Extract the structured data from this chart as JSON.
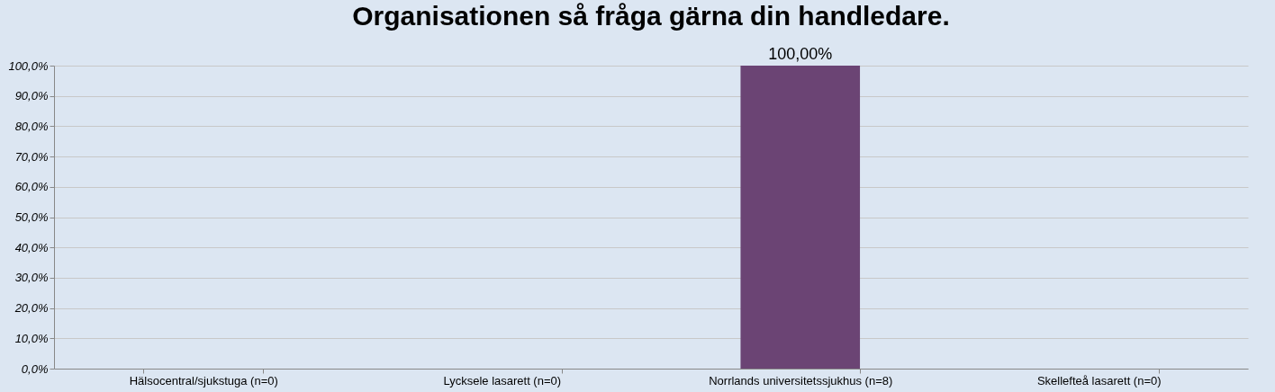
{
  "chart_data": {
    "type": "bar",
    "title": "Organisationen så fråga gärna din handledare.",
    "categories": [
      "Hälsocentral/sjukstuga (n=0)",
      "Lycksele lasarett (n=0)",
      "Norrlands universitetssjukhus (n=8)",
      "Skellefteå lasarett (n=0)"
    ],
    "values": [
      0,
      0,
      100,
      0
    ],
    "color": "#6b4474",
    "value_labels": [
      null,
      null,
      "100,00%",
      null
    ],
    "ylim": [
      0,
      100
    ],
    "yticks": [
      {
        "value": 0,
        "label": "0,0%"
      },
      {
        "value": 10,
        "label": "10,0%"
      },
      {
        "value": 20,
        "label": "20,0%"
      },
      {
        "value": 30,
        "label": "30,0%"
      },
      {
        "value": 40,
        "label": "40,0%"
      },
      {
        "value": 50,
        "label": "50,0%"
      },
      {
        "value": 60,
        "label": "60,0%"
      },
      {
        "value": 70,
        "label": "70,0%"
      },
      {
        "value": 80,
        "label": "80,0%"
      },
      {
        "value": 90,
        "label": "90,0%"
      },
      {
        "value": 100,
        "label": "100,0%"
      }
    ],
    "grid": "y"
  }
}
